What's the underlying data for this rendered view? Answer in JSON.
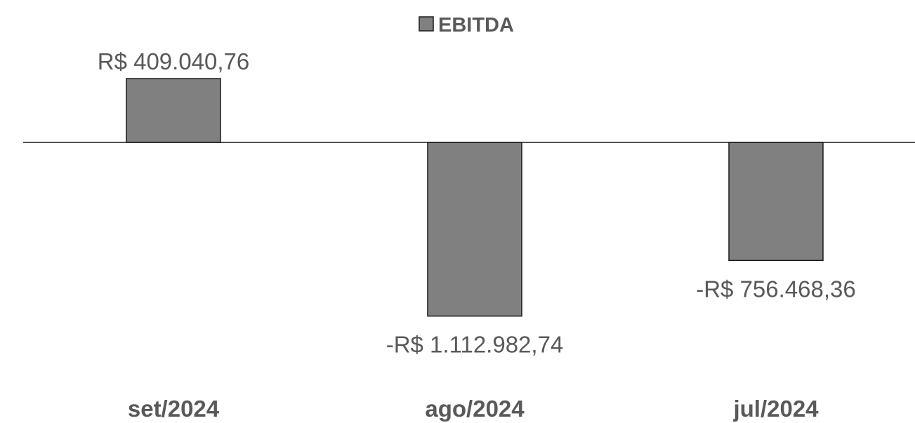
{
  "chart_data": {
    "type": "bar",
    "categories": [
      "set/2024",
      "ago/2024",
      "jul/2024"
    ],
    "series": [
      {
        "name": "EBITDA",
        "values": [
          409040.76,
          -1112982.74,
          -756468.36
        ],
        "labels": [
          "R$ 409.040,76",
          "-R$ 1.112.982,74",
          "-R$ 756.468,36"
        ]
      }
    ],
    "title": "",
    "xlabel": "",
    "ylabel": "",
    "ylim": [
      -1112982.74,
      409040.76
    ],
    "grid": false,
    "legend_position": "top-center",
    "bar_color": "#808080",
    "bar_stroke": "#1a1a1a",
    "text_color": "#595959"
  }
}
